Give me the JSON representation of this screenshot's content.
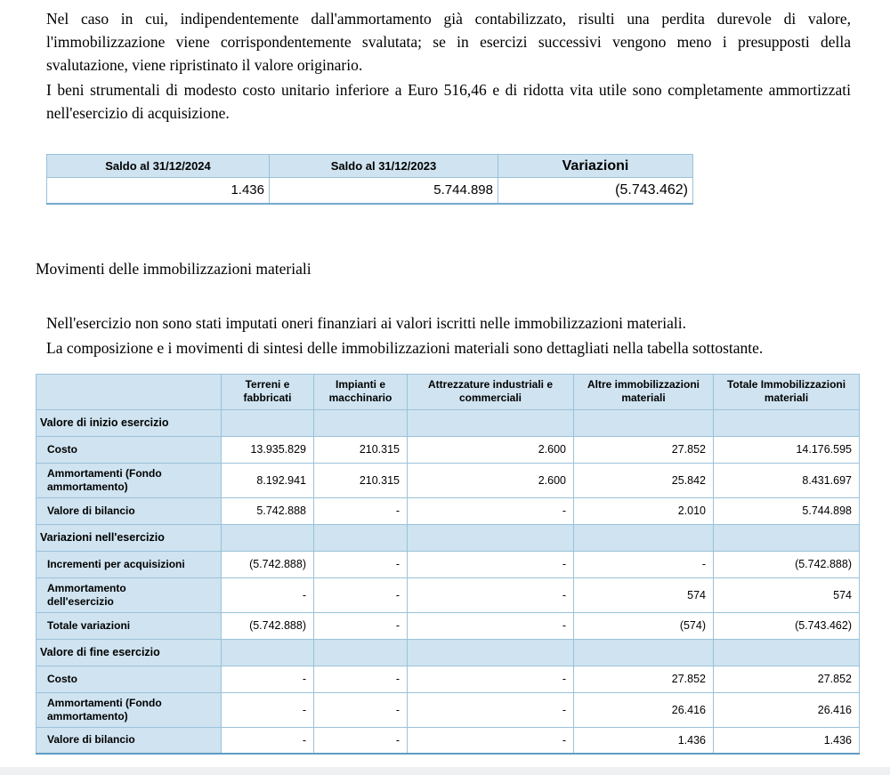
{
  "document": {
    "paragraph1": "Nel caso in cui, indipendentemente dall'ammortamento già contabilizzato, risulti una perdita durevole di valore, l'immobilizzazione viene corrispondentemente svalutata; se in esercizi successivi vengono meno i presupposti della svalutazione, viene ripristinato il valore originario.",
    "paragraph2": "I beni strumentali di modesto costo unitario inferiore a Euro 516,46 e di ridotta vita utile sono completamente ammortizzati nell'esercizio di acquisizione.",
    "heading": "Movimenti delle immobilizzazioni materiali",
    "paragraph3": "Nell'esercizio non sono stati imputati oneri finanziari ai valori iscritti nelle immobilizzazioni materiali.",
    "paragraph4": "La composizione e i movimenti di sintesi delle immobilizzazioni materiali sono dettagliati nella tabella sottostante."
  },
  "saldo_table": {
    "headers": [
      "Saldo al 31/12/2024",
      "Saldo al 31/12/2023",
      "Variazioni"
    ],
    "values": [
      "1.436",
      "5.744.898",
      "(5.743.462)"
    ]
  },
  "movimenti_table": {
    "col_headers": [
      "",
      "Terreni e\nfabbricati",
      "Impianti e\nmacchinario",
      "Attrezzature industriali e\ncommerciali",
      "Altre immobilizzazioni\nmateriali",
      "Totale Immobilizzazioni\nmateriali"
    ],
    "rows": [
      {
        "type": "section",
        "label": "Valore di inizio esercizio",
        "values": [
          "",
          "",
          "",
          "",
          ""
        ]
      },
      {
        "type": "data",
        "label": "Costo",
        "values": [
          "13.935.829",
          "210.315",
          "2.600",
          "27.852",
          "14.176.595"
        ]
      },
      {
        "type": "data",
        "label": "Ammortamenti (Fondo\nammortamento)",
        "values": [
          "8.192.941",
          "210.315",
          "2.600",
          "25.842",
          "8.431.697"
        ]
      },
      {
        "type": "data",
        "label": "Valore di bilancio",
        "values": [
          "5.742.888",
          "-",
          "-",
          "2.010",
          "5.744.898"
        ]
      },
      {
        "type": "section",
        "label": "Variazioni nell'esercizio",
        "values": [
          "",
          "",
          "",
          "",
          ""
        ]
      },
      {
        "type": "data",
        "label": "Incrementi per acquisizioni",
        "values": [
          "(5.742.888)",
          "-",
          "-",
          "-",
          "(5.742.888)"
        ]
      },
      {
        "type": "data",
        "label": "Ammortamento\ndell'esercizio",
        "values": [
          "-",
          "-",
          "-",
          "574",
          "574"
        ]
      },
      {
        "type": "data",
        "label": "Totale variazioni",
        "values": [
          "(5.742.888)",
          "-",
          "-",
          "(574)",
          "(5.743.462)"
        ]
      },
      {
        "type": "section",
        "label": "Valore di fine esercizio",
        "values": [
          "",
          "",
          "",
          "",
          ""
        ]
      },
      {
        "type": "data",
        "label": "Costo",
        "values": [
          "-",
          "-",
          "-",
          "27.852",
          "27.852"
        ]
      },
      {
        "type": "data",
        "label": "Ammortamenti (Fondo\nammortamento)",
        "values": [
          "-",
          "-",
          "-",
          "26.416",
          "26.416"
        ]
      },
      {
        "type": "data",
        "label": "Valore di bilancio",
        "values": [
          "-",
          "-",
          "-",
          "1.436",
          "1.436"
        ]
      }
    ]
  },
  "colors": {
    "table_header_fill": "#cfe3f0",
    "table_border": "#9ac2da",
    "table_outer_bottom_border": "#5f9cc4",
    "text": "#000000",
    "page_background": "#ffffff"
  }
}
